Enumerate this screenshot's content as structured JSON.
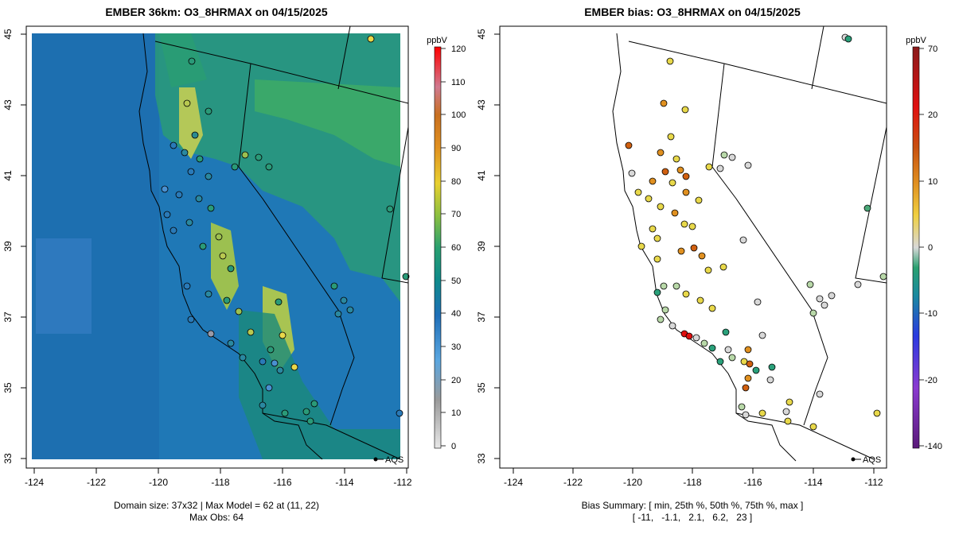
{
  "left_panel": {
    "title": "EMBER 36km: O3_8HRMAX on 04/15/2025",
    "footer_line1": "Domain size: 37x32 | Max Model = 62 at (11, 22)",
    "footer_line2": "Max Obs: 64",
    "colorbar_unit": "ppbV",
    "colorbar_ticks": [
      "120",
      "110",
      "100",
      "90",
      "80",
      "70",
      "60",
      "50",
      "40",
      "30",
      "20",
      "10",
      "0"
    ],
    "legend_label": "AQS",
    "x_ticks": [
      "-124",
      "-122",
      "-120",
      "-118",
      "-116",
      "-114",
      "-112"
    ],
    "y_ticks": [
      "45",
      "43",
      "41",
      "39",
      "37",
      "35",
      "33"
    ]
  },
  "right_panel": {
    "title": "EMBER bias: O3_8HRMAX on 04/15/2025",
    "footer_line1": "Bias Summary: [ min, 25th %, 50th %, 75th %, max ]",
    "footer_line2": "[ -11,   -1.1,   2.1,   6.2,   23 ]",
    "colorbar_unit": "ppbV",
    "colorbar_ticks": [
      "70",
      "20",
      "10",
      "0",
      "-10",
      "-20",
      "-140"
    ],
    "legend_label": "AQS",
    "x_ticks": [
      "-124",
      "-122",
      "-120",
      "-118",
      "-116",
      "-114",
      "-112"
    ],
    "y_ticks": [
      "45",
      "43",
      "41",
      "39",
      "37",
      "35",
      "33"
    ]
  },
  "colors": {
    "model_low": "#1f77b4",
    "model_mid": "#3aa86a",
    "model_high": "#e8d84a",
    "bias_positive": "#e08a1a",
    "bias_negative": "#2aa07a"
  }
}
